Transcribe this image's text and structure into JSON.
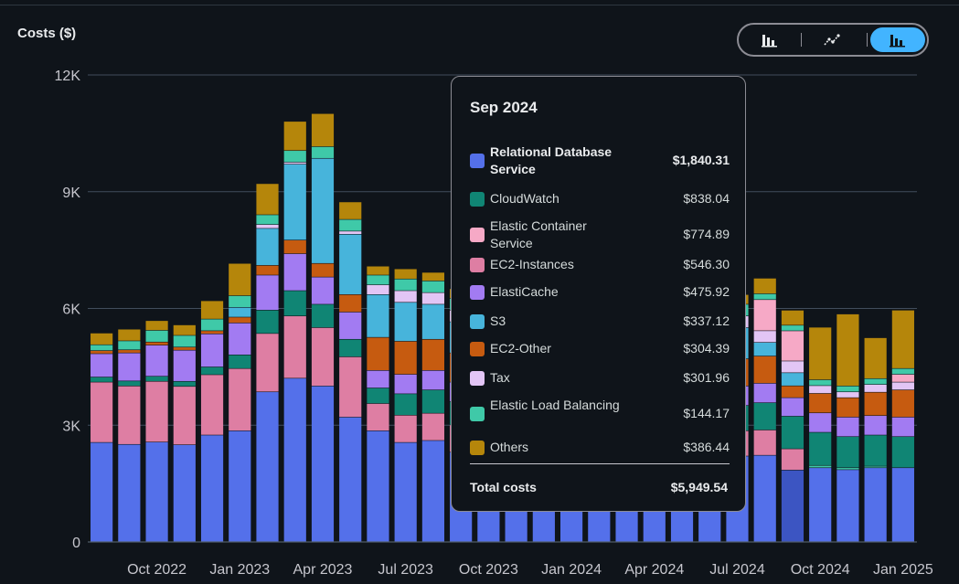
{
  "header": {
    "y_axis_title": "Costs ($)"
  },
  "view_toggle": [
    {
      "name": "bar-chart",
      "icon": "bar-chart-icon",
      "selected": false
    },
    {
      "name": "line-chart",
      "icon": "line-chart-icon",
      "selected": false
    },
    {
      "name": "stacked-bar-chart",
      "icon": "stacked-bar-chart-icon",
      "selected": true
    }
  ],
  "chart_data": {
    "type": "bar",
    "stacked": true,
    "title": "",
    "ylabel": "Costs ($)",
    "ylim": [
      0,
      12000
    ],
    "y_ticks": [
      0,
      3000,
      6000,
      9000,
      12000
    ],
    "y_tick_labels": [
      "0",
      "3K",
      "6K",
      "9K",
      "12K"
    ],
    "x_tick_labels": [
      {
        "label": "Oct 2022",
        "index": 2
      },
      {
        "label": "Jan 2023",
        "index": 5
      },
      {
        "label": "Apr 2023",
        "index": 8
      },
      {
        "label": "Jul 2023",
        "index": 11
      },
      {
        "label": "Oct 2023",
        "index": 14
      },
      {
        "label": "Jan 2024",
        "index": 17
      },
      {
        "label": "Apr 2024",
        "index": 20
      },
      {
        "label": "Jul 2024",
        "index": 23
      },
      {
        "label": "Oct 2024",
        "index": 26
      },
      {
        "label": "Jan 2025",
        "index": 29
      }
    ],
    "categories": [
      "Aug 2022",
      "Sep 2022",
      "Oct 2022",
      "Nov 2022",
      "Dec 2022",
      "Jan 2023",
      "Feb 2023",
      "Mar 2023",
      "Apr 2023",
      "May 2023",
      "Jun 2023",
      "Jul 2023",
      "Aug 2023",
      "Sep 2023",
      "Oct 2023",
      "Nov 2023",
      "Dec 2023",
      "Jan 2024",
      "Feb 2024",
      "Mar 2024",
      "Apr 2024",
      "May 2024",
      "Jun 2024",
      "Jul 2024",
      "Aug 2024",
      "Sep 2024",
      "Oct 2024",
      "Nov 2024",
      "Dec 2024",
      "Jan 2025"
    ],
    "highlighted_category": "Sep 2024",
    "series": [
      {
        "name": "Relational Database Service",
        "color": "#5470ea",
        "values": [
          2550,
          2500,
          2560,
          2490,
          2740,
          2850,
          3850,
          4200,
          4000,
          3200,
          2850,
          2550,
          2600,
          2300,
          2200,
          2200,
          2200,
          2200,
          2200,
          2200,
          2200,
          2200,
          2200,
          2200,
          2220,
          1840,
          1900,
          1850,
          1900,
          1900
        ]
      },
      {
        "name": "Elastic Load Balancing",
        "color": "#3fc9a8",
        "values": [
          0,
          0,
          0,
          0,
          0,
          0,
          0,
          0,
          0,
          0,
          0,
          0,
          0,
          0,
          0,
          0,
          0,
          0,
          0,
          0,
          0,
          0,
          0,
          0,
          0,
          0,
          60,
          50,
          40,
          0
        ]
      },
      {
        "name": "EC2-Instances",
        "color": "#de7ea3",
        "values": [
          1550,
          1500,
          1560,
          1500,
          1550,
          1600,
          1500,
          1600,
          1500,
          1550,
          700,
          700,
          700,
          700,
          700,
          650,
          650,
          650,
          650,
          650,
          650,
          650,
          650,
          650,
          650,
          546,
          0,
          0,
          0,
          0
        ]
      },
      {
        "name": "CloudWatch",
        "color": "#108574",
        "values": [
          130,
          130,
          130,
          130,
          200,
          350,
          600,
          650,
          600,
          450,
          400,
          550,
          600,
          600,
          600,
          600,
          600,
          600,
          600,
          650,
          650,
          650,
          650,
          650,
          700,
          838,
          850,
          800,
          800,
          800
        ]
      },
      {
        "name": "ElastiCache",
        "color": "#a27bf2",
        "values": [
          600,
          720,
          800,
          800,
          850,
          820,
          900,
          950,
          700,
          700,
          450,
          500,
          500,
          500,
          500,
          500,
          500,
          500,
          500,
          500,
          500,
          500,
          500,
          500,
          500,
          476,
          500,
          500,
          500,
          500
        ]
      },
      {
        "name": "EC2-Other",
        "color": "#c65b10",
        "values": [
          80,
          80,
          80,
          80,
          80,
          150,
          250,
          350,
          350,
          450,
          850,
          850,
          800,
          750,
          700,
          700,
          700,
          700,
          700,
          700,
          700,
          700,
          700,
          700,
          700,
          304,
          500,
          500,
          600,
          700
        ]
      },
      {
        "name": "S3",
        "color": "#47b4db",
        "values": [
          0,
          0,
          0,
          0,
          0,
          250,
          950,
          1950,
          2700,
          1550,
          1100,
          1000,
          900,
          800,
          800,
          800,
          800,
          800,
          800,
          800,
          800,
          800,
          800,
          800,
          350,
          337,
          0,
          0,
          0,
          0
        ]
      },
      {
        "name": "Tax",
        "color": "#e2c5f5",
        "values": [
          0,
          0,
          0,
          0,
          0,
          0,
          100,
          50,
          0,
          80,
          250,
          300,
          300,
          300,
          300,
          300,
          300,
          300,
          300,
          300,
          300,
          300,
          300,
          300,
          300,
          302,
          200,
          150,
          200,
          200
        ]
      },
      {
        "name": "Elastic Container Service",
        "color": "#f6a9c6",
        "values": [
          0,
          0,
          0,
          0,
          0,
          0,
          0,
          0,
          0,
          0,
          0,
          0,
          0,
          0,
          0,
          0,
          0,
          0,
          0,
          0,
          0,
          0,
          0,
          0,
          800,
          775,
          0,
          0,
          0,
          200
        ]
      },
      {
        "name": "Elastic Load Balancing",
        "color": "#3fc9a8",
        "values": [
          150,
          230,
          300,
          300,
          300,
          300,
          250,
          300,
          300,
          300,
          250,
          300,
          300,
          300,
          300,
          300,
          300,
          300,
          300,
          300,
          300,
          300,
          300,
          300,
          150,
          144,
          150,
          150,
          150,
          150
        ]
      },
      {
        "name": "Others",
        "color": "#b5860b",
        "values": [
          300,
          300,
          250,
          270,
          470,
          830,
          800,
          750,
          850,
          450,
          230,
          260,
          220,
          250,
          250,
          250,
          250,
          250,
          250,
          250,
          250,
          250,
          250,
          250,
          400,
          386,
          1350,
          1850,
          1050,
          1500
        ]
      }
    ]
  },
  "tooltip": {
    "title": "Sep 2024",
    "items": [
      {
        "name": "Relational Database Service",
        "value": "$1,840.31",
        "color": "#5470ea",
        "bold": true
      },
      {
        "name": "CloudWatch",
        "value": "$838.04",
        "color": "#108574"
      },
      {
        "name": "Elastic Container Service",
        "value": "$774.89",
        "color": "#f6a9c6"
      },
      {
        "name": "EC2-Instances",
        "value": "$546.30",
        "color": "#de7ea3"
      },
      {
        "name": "ElastiCache",
        "value": "$475.92",
        "color": "#a27bf2"
      },
      {
        "name": "S3",
        "value": "$337.12",
        "color": "#47b4db"
      },
      {
        "name": "EC2-Other",
        "value": "$304.39",
        "color": "#c65b10"
      },
      {
        "name": "Tax",
        "value": "$301.96",
        "color": "#e2c5f5"
      },
      {
        "name": "Elastic Load Balancing",
        "value": "$144.17",
        "color": "#3fc9a8"
      },
      {
        "name": "Others",
        "value": "$386.44",
        "color": "#b5860b"
      }
    ],
    "total_label": "Total costs",
    "total_value": "$5,949.54"
  }
}
